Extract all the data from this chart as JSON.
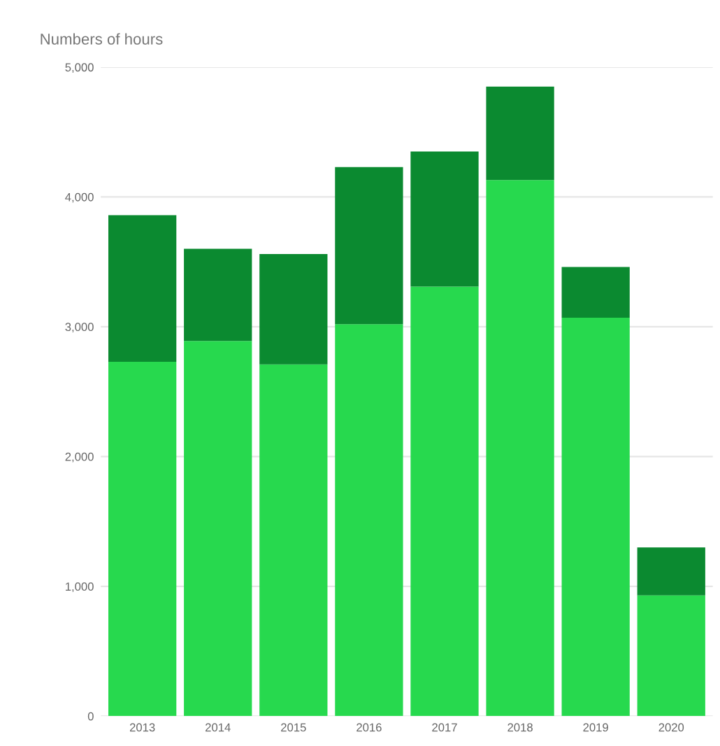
{
  "chart_data": {
    "type": "bar",
    "ylabel": "Numbers of hours",
    "stacked": true,
    "categories": [
      "2013",
      "2014",
      "2015",
      "2016",
      "2017",
      "2018",
      "2019",
      "2020"
    ],
    "series": [
      {
        "color": "#27d94e",
        "values": [
          2730,
          2890,
          2710,
          3020,
          3310,
          4130,
          3070,
          930
        ]
      },
      {
        "color": "#0b8a30",
        "values": [
          1130,
          710,
          850,
          1210,
          1040,
          720,
          390,
          370
        ]
      }
    ],
    "ylim": [
      0,
      5000
    ],
    "yticks": [
      0,
      {
        "value": 1000,
        "label": "1,000"
      },
      {
        "value": 2000,
        "label": "2,000"
      },
      {
        "value": 3000,
        "label": "3,000"
      },
      {
        "value": 4000,
        "label": "4,000"
      },
      {
        "value": 5000,
        "label": "5,000"
      }
    ],
    "grid": "y"
  }
}
